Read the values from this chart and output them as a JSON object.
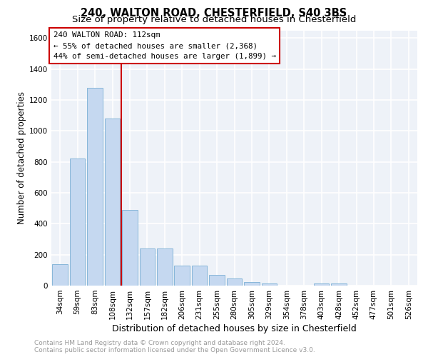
{
  "title1": "240, WALTON ROAD, CHESTERFIELD, S40 3BS",
  "title2": "Size of property relative to detached houses in Chesterfield",
  "xlabel": "Distribution of detached houses by size in Chesterfield",
  "ylabel": "Number of detached properties",
  "footnote": "Contains HM Land Registry data © Crown copyright and database right 2024.\nContains public sector information licensed under the Open Government Licence v3.0.",
  "categories": [
    "34sqm",
    "59sqm",
    "83sqm",
    "108sqm",
    "132sqm",
    "157sqm",
    "182sqm",
    "206sqm",
    "231sqm",
    "255sqm",
    "280sqm",
    "305sqm",
    "329sqm",
    "354sqm",
    "378sqm",
    "403sqm",
    "428sqm",
    "452sqm",
    "477sqm",
    "501sqm",
    "526sqm"
  ],
  "values": [
    140,
    820,
    1280,
    1080,
    490,
    240,
    240,
    130,
    130,
    70,
    45,
    25,
    15,
    0,
    0,
    15,
    15,
    0,
    0,
    0,
    0
  ],
  "bar_color": "#c5d8f0",
  "bar_edge_color": "#7aafd4",
  "property_line_x": 3.5,
  "annotation_line1": "240 WALTON ROAD: 112sqm",
  "annotation_line2": "← 55% of detached houses are smaller (2,368)",
  "annotation_line3": "44% of semi-detached houses are larger (1,899) →",
  "annotation_box_color": "#cc0000",
  "ylim": [
    0,
    1650
  ],
  "yticks": [
    0,
    200,
    400,
    600,
    800,
    1000,
    1200,
    1400,
    1600
  ],
  "background_color": "#eef2f8",
  "grid_color": "#ffffff",
  "title1_fontsize": 10.5,
  "title2_fontsize": 9.5,
  "xlabel_fontsize": 9,
  "ylabel_fontsize": 8.5,
  "tick_fontsize": 7.5,
  "footnote_fontsize": 6.5
}
